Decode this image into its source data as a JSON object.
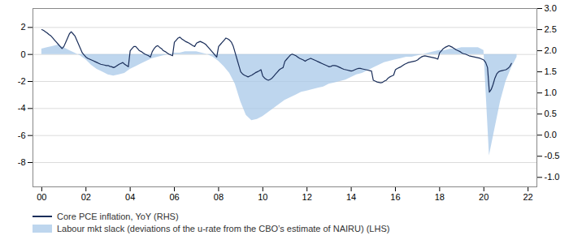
{
  "chart_data": {
    "type": "line",
    "grid": true,
    "legend": "bottom",
    "xlim": [
      1999.6,
      2022.4
    ],
    "xticks": [
      {
        "value": 2000,
        "label": "00"
      },
      {
        "value": 2002,
        "label": "02"
      },
      {
        "value": 2004,
        "label": "04"
      },
      {
        "value": 2006,
        "label": "06"
      },
      {
        "value": 2008,
        "label": "08"
      },
      {
        "value": 2010,
        "label": "10"
      },
      {
        "value": 2012,
        "label": "12"
      },
      {
        "value": 2014,
        "label": "14"
      },
      {
        "value": 2016,
        "label": "16"
      },
      {
        "value": 2018,
        "label": "18"
      },
      {
        "value": 2020,
        "label": "20"
      },
      {
        "value": 2022,
        "label": "22"
      }
    ],
    "ylim": [
      -9.8,
      3.4
    ],
    "yticks": [
      -8,
      -6,
      -4,
      -2,
      0,
      2
    ],
    "y2lim": [
      -1.225,
      3.0
    ],
    "y2ticks": [
      {
        "value": -1,
        "label": "-1.0"
      },
      -0.5,
      {
        "value": 0,
        "label": "0.0"
      },
      0.5,
      {
        "value": 1,
        "label": "1.0"
      },
      1.5,
      {
        "value": 2,
        "label": "2.0"
      },
      2.5,
      {
        "value": 3,
        "label": "3.0"
      }
    ],
    "series": [
      {
        "name": "Core PCE inflation, YoY (RHS)",
        "type": "line",
        "axis": "y2",
        "color": "#1a2e5a",
        "x": [
          2000.0,
          2000.083,
          2000.167,
          2000.25,
          2000.333,
          2000.417,
          2000.5,
          2000.583,
          2000.667,
          2000.75,
          2000.833,
          2000.917,
          2001.0,
          2001.083,
          2001.167,
          2001.25,
          2001.333,
          2001.417,
          2001.5,
          2001.583,
          2001.667,
          2001.75,
          2001.833,
          2001.917,
          2002.0,
          2002.083,
          2002.167,
          2002.25,
          2002.333,
          2002.417,
          2002.5,
          2002.583,
          2002.667,
          2002.75,
          2002.833,
          2002.917,
          2003.0,
          2003.083,
          2003.167,
          2003.25,
          2003.333,
          2003.417,
          2003.5,
          2003.583,
          2003.667,
          2003.75,
          2003.833,
          2003.917,
          2004.0,
          2004.083,
          2004.167,
          2004.25,
          2004.333,
          2004.417,
          2004.5,
          2004.583,
          2004.667,
          2004.75,
          2004.833,
          2004.917,
          2005.0,
          2005.083,
          2005.167,
          2005.25,
          2005.333,
          2005.417,
          2005.5,
          2005.583,
          2005.667,
          2005.75,
          2005.833,
          2005.917,
          2006.0,
          2006.083,
          2006.167,
          2006.25,
          2006.333,
          2006.417,
          2006.5,
          2006.583,
          2006.667,
          2006.75,
          2006.833,
          2006.917,
          2007.0,
          2007.083,
          2007.167,
          2007.25,
          2007.333,
          2007.417,
          2007.5,
          2007.583,
          2007.667,
          2007.75,
          2007.833,
          2007.917,
          2008.0,
          2008.083,
          2008.167,
          2008.25,
          2008.333,
          2008.417,
          2008.5,
          2008.583,
          2008.667,
          2008.75,
          2008.833,
          2008.917,
          2009.0,
          2009.083,
          2009.167,
          2009.25,
          2009.333,
          2009.417,
          2009.5,
          2009.583,
          2009.667,
          2009.75,
          2009.833,
          2009.917,
          2010.0,
          2010.083,
          2010.167,
          2010.25,
          2010.333,
          2010.417,
          2010.5,
          2010.583,
          2010.667,
          2010.75,
          2010.833,
          2010.917,
          2011.0,
          2011.083,
          2011.167,
          2011.25,
          2011.333,
          2011.417,
          2011.5,
          2011.583,
          2011.667,
          2011.75,
          2011.833,
          2011.917,
          2012.0,
          2012.083,
          2012.167,
          2012.25,
          2012.333,
          2012.417,
          2012.5,
          2012.583,
          2012.667,
          2012.75,
          2012.833,
          2012.917,
          2013.0,
          2013.083,
          2013.167,
          2013.25,
          2013.333,
          2013.417,
          2013.5,
          2013.583,
          2013.667,
          2013.75,
          2013.833,
          2013.917,
          2014.0,
          2014.083,
          2014.167,
          2014.25,
          2014.333,
          2014.417,
          2014.5,
          2014.583,
          2014.667,
          2014.75,
          2014.833,
          2014.917,
          2015.0,
          2015.083,
          2015.167,
          2015.25,
          2015.333,
          2015.417,
          2015.5,
          2015.583,
          2015.667,
          2015.75,
          2015.833,
          2015.917,
          2016.0,
          2016.083,
          2016.167,
          2016.25,
          2016.333,
          2016.417,
          2016.5,
          2016.583,
          2016.667,
          2016.75,
          2016.833,
          2016.917,
          2017.0,
          2017.083,
          2017.167,
          2017.25,
          2017.333,
          2017.417,
          2017.5,
          2017.583,
          2017.667,
          2017.75,
          2017.833,
          2017.917,
          2018.0,
          2018.083,
          2018.167,
          2018.25,
          2018.333,
          2018.417,
          2018.5,
          2018.583,
          2018.667,
          2018.75,
          2018.833,
          2018.917,
          2019.0,
          2019.083,
          2019.167,
          2019.25,
          2019.333,
          2019.417,
          2019.5,
          2019.583,
          2019.667,
          2019.75,
          2019.833,
          2019.917,
          2020.0,
          2020.083,
          2020.167,
          2020.25,
          2020.333,
          2020.417,
          2020.5,
          2020.583,
          2020.667,
          2020.75,
          2020.833,
          2020.917,
          2021.0,
          2021.083,
          2021.167,
          2021.25
        ],
        "values": [
          2.5,
          2.48,
          2.45,
          2.42,
          2.38,
          2.35,
          2.3,
          2.25,
          2.2,
          2.15,
          2.1,
          2.05,
          2.1,
          2.2,
          2.3,
          2.4,
          2.45,
          2.4,
          2.35,
          2.25,
          2.15,
          2.05,
          1.95,
          1.9,
          1.85,
          1.82,
          1.8,
          1.78,
          1.76,
          1.74,
          1.72,
          1.7,
          1.68,
          1.67,
          1.66,
          1.65,
          1.65,
          1.63,
          1.62,
          1.6,
          1.62,
          1.65,
          1.68,
          1.7,
          1.72,
          1.68,
          1.65,
          1.62,
          2.0,
          2.05,
          2.1,
          2.1,
          2.05,
          2.0,
          1.98,
          1.95,
          1.92,
          1.9,
          1.88,
          1.85,
          1.98,
          2.05,
          2.1,
          2.12,
          2.08,
          2.05,
          2.0,
          1.98,
          1.95,
          1.92,
          1.9,
          1.88,
          2.2,
          2.25,
          2.3,
          2.32,
          2.28,
          2.25,
          2.22,
          2.2,
          2.18,
          2.15,
          2.12,
          2.1,
          2.18,
          2.2,
          2.22,
          2.2,
          2.18,
          2.15,
          2.1,
          2.05,
          2.0,
          1.95,
          1.9,
          1.85,
          2.1,
          2.15,
          2.2,
          2.25,
          2.3,
          2.28,
          2.25,
          2.2,
          2.1,
          1.95,
          1.8,
          1.65,
          1.5,
          1.45,
          1.42,
          1.4,
          1.38,
          1.4,
          1.42,
          1.45,
          1.48,
          1.5,
          1.52,
          1.55,
          1.4,
          1.35,
          1.32,
          1.3,
          1.32,
          1.35,
          1.4,
          1.45,
          1.5,
          1.55,
          1.58,
          1.6,
          1.75,
          1.8,
          1.85,
          1.9,
          1.92,
          1.9,
          1.88,
          1.85,
          1.82,
          1.8,
          1.78,
          1.75,
          1.78,
          1.8,
          1.82,
          1.8,
          1.78,
          1.76,
          1.74,
          1.72,
          1.7,
          1.68,
          1.66,
          1.64,
          1.62,
          1.63,
          1.65,
          1.65,
          1.64,
          1.62,
          1.6,
          1.58,
          1.56,
          1.55,
          1.54,
          1.53,
          1.52,
          1.53,
          1.55,
          1.57,
          1.58,
          1.58,
          1.57,
          1.56,
          1.55,
          1.54,
          1.53,
          1.52,
          1.3,
          1.28,
          1.26,
          1.25,
          1.24,
          1.25,
          1.28,
          1.3,
          1.35,
          1.38,
          1.4,
          1.42,
          1.55,
          1.58,
          1.6,
          1.62,
          1.65,
          1.68,
          1.7,
          1.72,
          1.73,
          1.74,
          1.75,
          1.76,
          1.78,
          1.82,
          1.85,
          1.87,
          1.88,
          1.87,
          1.86,
          1.85,
          1.84,
          1.83,
          1.82,
          1.8,
          1.95,
          2.0,
          2.05,
          2.08,
          2.1,
          2.12,
          2.1,
          2.08,
          2.05,
          2.02,
          2.0,
          1.98,
          1.95,
          1.93,
          1.92,
          1.9,
          1.88,
          1.87,
          1.86,
          1.85,
          1.84,
          1.83,
          1.82,
          1.8,
          1.78,
          1.72,
          1.6,
          1.02,
          1.08,
          1.2,
          1.35,
          1.45,
          1.5,
          1.52,
          1.53,
          1.54,
          1.55,
          1.58,
          1.62,
          1.7
        ]
      },
      {
        "name": "Labour mkt slack (deviations of the u-rate from the CBO’s estimate of NAIRU) (LHS)",
        "type": "area",
        "color": "#a8c8e8",
        "x": [
          2000.0,
          2000.25,
          2000.5,
          2000.75,
          2001.0,
          2001.25,
          2001.5,
          2001.75,
          2002.0,
          2002.25,
          2002.5,
          2002.75,
          2003.0,
          2003.25,
          2003.5,
          2003.75,
          2004.0,
          2004.25,
          2004.5,
          2004.75,
          2005.0,
          2005.25,
          2005.5,
          2005.75,
          2006.0,
          2006.25,
          2006.5,
          2006.75,
          2007.0,
          2007.25,
          2007.5,
          2007.75,
          2008.0,
          2008.25,
          2008.5,
          2008.75,
          2009.0,
          2009.25,
          2009.5,
          2009.75,
          2010.0,
          2010.25,
          2010.5,
          2010.75,
          2011.0,
          2011.25,
          2011.5,
          2011.75,
          2012.0,
          2012.25,
          2012.5,
          2012.75,
          2013.0,
          2013.25,
          2013.5,
          2013.75,
          2014.0,
          2014.25,
          2014.5,
          2014.75,
          2015.0,
          2015.25,
          2015.5,
          2015.75,
          2016.0,
          2016.25,
          2016.5,
          2016.75,
          2017.0,
          2017.25,
          2017.5,
          2017.75,
          2018.0,
          2018.25,
          2018.5,
          2018.75,
          2019.0,
          2019.25,
          2019.5,
          2019.75,
          2020.0,
          2020.25,
          2020.5,
          2020.75,
          2021.0,
          2021.25,
          2021.5
        ],
        "values": [
          0.4,
          0.5,
          0.6,
          0.7,
          0.5,
          0.3,
          0.1,
          -0.1,
          -0.4,
          -0.8,
          -1.1,
          -1.3,
          -1.5,
          -1.6,
          -1.5,
          -1.4,
          -1.1,
          -0.9,
          -0.7,
          -0.5,
          -0.3,
          -0.2,
          -0.1,
          0.0,
          0.1,
          0.1,
          0.2,
          0.2,
          0.2,
          0.1,
          0.0,
          -0.2,
          -0.5,
          -0.9,
          -1.4,
          -2.2,
          -3.5,
          -4.5,
          -4.9,
          -4.8,
          -4.6,
          -4.3,
          -4.0,
          -3.7,
          -3.4,
          -3.2,
          -3.0,
          -2.8,
          -2.7,
          -2.6,
          -2.5,
          -2.4,
          -2.2,
          -2.1,
          -2.0,
          -1.9,
          -1.7,
          -1.5,
          -1.4,
          -1.2,
          -1.0,
          -0.8,
          -0.6,
          -0.5,
          -0.4,
          -0.3,
          -0.2,
          -0.2,
          -0.1,
          0.0,
          0.1,
          0.2,
          0.3,
          0.3,
          0.4,
          0.4,
          0.5,
          0.5,
          0.5,
          0.5,
          0.3,
          -7.5,
          -5.5,
          -3.5,
          -2.0,
          -1.0,
          -0.2
        ]
      }
    ]
  }
}
